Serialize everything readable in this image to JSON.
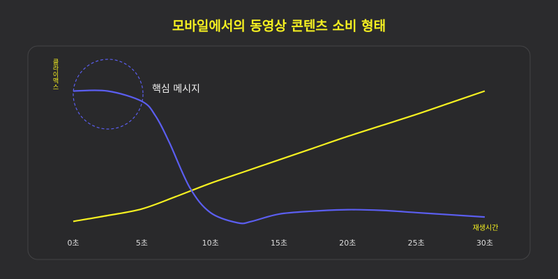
{
  "chart_data": {
    "type": "line",
    "title": "모바일에서의 동영상 콘텐츠 소비 형태",
    "xlabel": "재생시간",
    "ylabel": "클라이맥스",
    "annotation": "핵심 메시지",
    "xlim": [
      0,
      30
    ],
    "ylim": [
      0,
      100
    ],
    "xticks": [
      {
        "value": 0,
        "label": "0초"
      },
      {
        "value": 5,
        "label": "5초"
      },
      {
        "value": 10,
        "label": "10초"
      },
      {
        "value": 15,
        "label": "15초"
      },
      {
        "value": 20,
        "label": "20초"
      },
      {
        "value": 25,
        "label": "25초"
      },
      {
        "value": 30,
        "label": "30초"
      }
    ],
    "series": [
      {
        "color": "#f5f021",
        "x": [
          0,
          2.5,
          5,
          7.5,
          10,
          12.5,
          15,
          17.5,
          20,
          22.5,
          25,
          27.5,
          30
        ],
        "values": [
          6,
          10,
          14.5,
          23,
          32,
          40,
          48,
          56,
          64,
          71.5,
          79,
          87,
          95
        ]
      },
      {
        "color": "#5b5ef0",
        "x": [
          0,
          2.5,
          5,
          6,
          7,
          8.5,
          10,
          12,
          13,
          15,
          17.5,
          20,
          22.5,
          25,
          27.5,
          30
        ],
        "values": [
          95,
          95,
          88,
          78,
          60,
          29,
          12,
          5,
          6,
          11,
          13,
          14,
          13.5,
          12,
          10.5,
          9
        ]
      }
    ]
  }
}
